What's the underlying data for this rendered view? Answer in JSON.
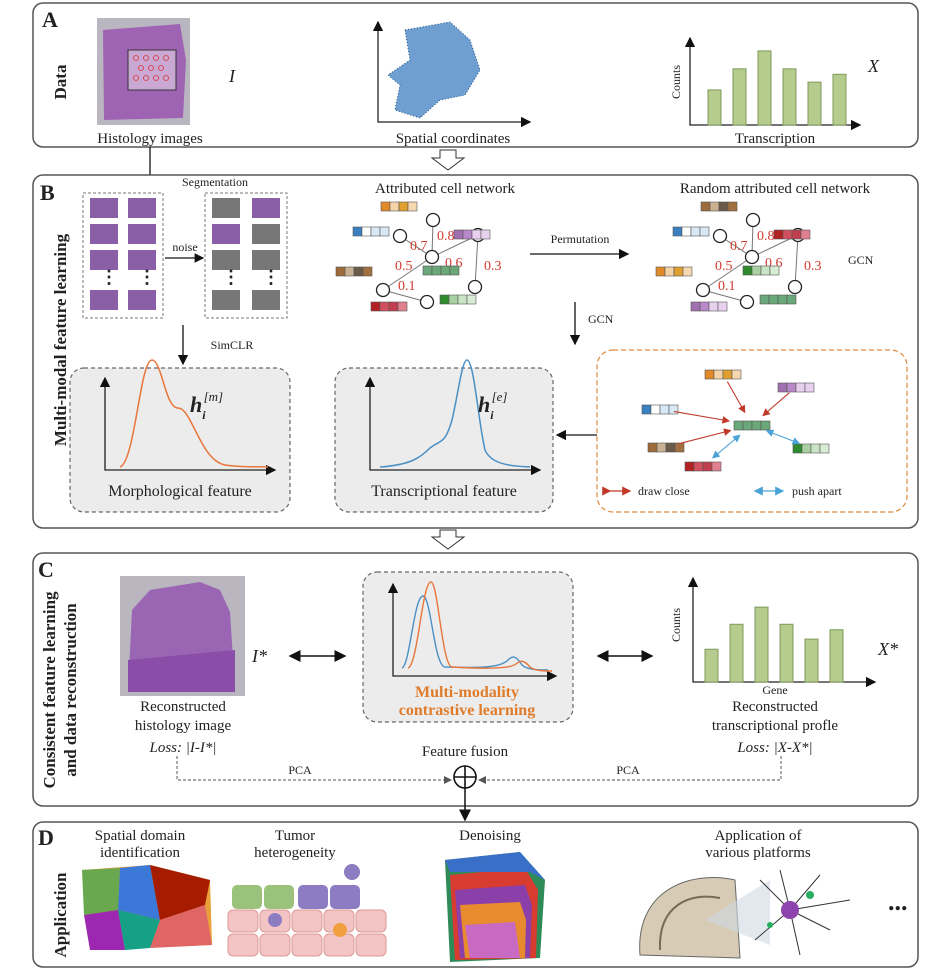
{
  "panel_a": {
    "letter": "A",
    "side_label": "Data",
    "histology_caption": "Histology images",
    "histology_symbol": "I",
    "spatial_caption": "Spatial coordinates",
    "transcription_caption": "Transcription",
    "counts_label": "Counts",
    "transcription_symbol": "X",
    "bars": [
      0.45,
      0.72,
      0.95,
      0.72,
      0.55,
      0.65
    ]
  },
  "panel_b": {
    "letter": "B",
    "side_label": "Multi-modal feature learning",
    "segmentation_label": "Segmentation",
    "noise_label": "noise",
    "simclr_label": "SimCLR",
    "network_title": "Attributed cell network",
    "random_network_title": "Random attributed cell network",
    "permutation_label": "Permutation",
    "gcn_label": "GCN",
    "gcn_label_right": "GCN",
    "edge_weights": [
      "0.7",
      "0.8",
      "0.5",
      "0.6",
      "0.3",
      "0.1"
    ],
    "morph_symbol": "h",
    "morph_sub": "i",
    "morph_sup": "[m]",
    "morph_caption": "Morphological feature",
    "trans_symbol": "h",
    "trans_sub": "i",
    "trans_sup": "[e]",
    "trans_caption": "Transcriptional feature",
    "draw_close_label": "draw close",
    "push_apart_label": "push apart",
    "colors": {
      "draw_close": "#c0392b",
      "push_apart": "#4aa3d6",
      "curve_orange": "#e8763a",
      "curve_blue": "#4a8fc4"
    }
  },
  "panel_c": {
    "letter": "C",
    "side_label_1": "Consistent feature learning",
    "side_label_2": "and data reconstruction",
    "image_symbol": "I*",
    "image_caption_1": "Reconstructed",
    "image_caption_2": "histology image",
    "image_loss": "Loss: |I-I*|",
    "contrastive_1": "Multi-modality",
    "contrastive_2": "contrastive learning",
    "contrastive_color": "#e07b2a",
    "counts_label": "Counts",
    "gene_label": "Gene",
    "profile_symbol": "X*",
    "profile_caption_1": "Reconstructed",
    "profile_caption_2": "transcriptional profle",
    "profile_loss": "Loss: |X-X*|",
    "fusion_label": "Feature fusion",
    "pca_left": "PCA",
    "pca_right": "PCA",
    "bars": [
      0.42,
      0.74,
      0.96,
      0.74,
      0.55,
      0.67
    ]
  },
  "panel_d": {
    "letter": "D",
    "side_label": "Application",
    "app1_1": "Spatial domain",
    "app1_2": "identification",
    "app2_1": "Tumor",
    "app2_2": "heterogeneity",
    "app3": "Denoising",
    "app4_1": "Application of",
    "app4_2": "various platforms",
    "ellipsis": "..."
  }
}
